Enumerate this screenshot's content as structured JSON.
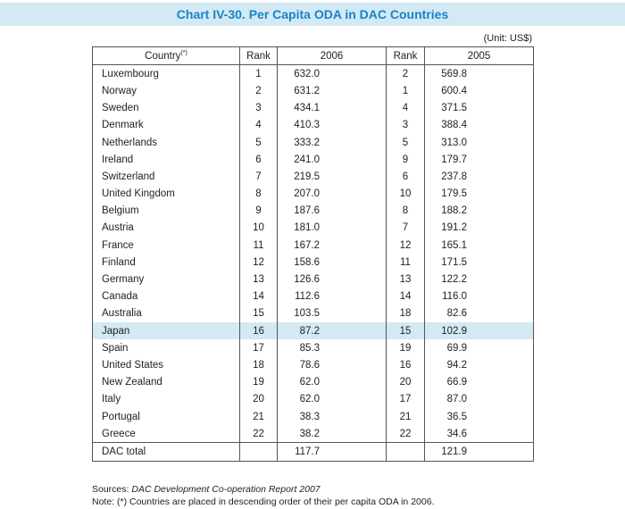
{
  "title": "Chart IV-30. Per Capita ODA in DAC Countries",
  "unit": "(Unit: US$)",
  "table": {
    "header": {
      "country": "Country",
      "country_note": "(*)",
      "rank_2006": "Rank",
      "year_2006": "2006",
      "rank_2005": "Rank",
      "year_2005": "2005"
    },
    "rows": [
      [
        "Luxembourg",
        1,
        "632.0",
        2,
        "569.8"
      ],
      [
        "Norway",
        2,
        "631.2",
        1,
        "600.4"
      ],
      [
        "Sweden",
        3,
        "434.1",
        4,
        "371.5"
      ],
      [
        "Denmark",
        4,
        "410.3",
        3,
        "388.4"
      ],
      [
        "Netherlands",
        5,
        "333.2",
        5,
        "313.0"
      ],
      [
        "Ireland",
        6,
        "241.0",
        9,
        "179.7"
      ],
      [
        "Switzerland",
        7,
        "219.5",
        6,
        "237.8"
      ],
      [
        "United Kingdom",
        8,
        "207.0",
        10,
        "179.5"
      ],
      [
        "Belgium",
        9,
        "187.6",
        8,
        "188.2"
      ],
      [
        "Austria",
        10,
        "181.0",
        7,
        "191.2"
      ],
      [
        "France",
        11,
        "167.2",
        12,
        "165.1"
      ],
      [
        "Finland",
        12,
        "158.6",
        11,
        "171.5"
      ],
      [
        "Germany",
        13,
        "126.6",
        13,
        "122.2"
      ],
      [
        "Canada",
        14,
        "112.6",
        14,
        "116.0"
      ],
      [
        "Australia",
        15,
        "103.5",
        18,
        "82.6"
      ],
      [
        "Japan",
        16,
        "87.2",
        15,
        "102.9"
      ],
      [
        "Spain",
        17,
        "85.3",
        19,
        "69.9"
      ],
      [
        "United States",
        18,
        "78.6",
        16,
        "94.2"
      ],
      [
        "New Zealand",
        19,
        "62.0",
        20,
        "66.9"
      ],
      [
        "Italy",
        20,
        "62.0",
        17,
        "87.0"
      ],
      [
        "Portugal",
        21,
        "38.3",
        21,
        "36.5"
      ],
      [
        "Greece",
        22,
        "38.2",
        22,
        "34.6"
      ]
    ],
    "highlight_row": 15,
    "total": {
      "label": "DAC total",
      "year_2006": "117.7",
      "year_2005": "121.9"
    }
  },
  "footer": {
    "sources_label": "Sources:",
    "sources_title": "DAC Development Co-operation Report 2007",
    "note": "Note: (*) Countries are placed in descending order of their per capita ODA in 2006."
  }
}
